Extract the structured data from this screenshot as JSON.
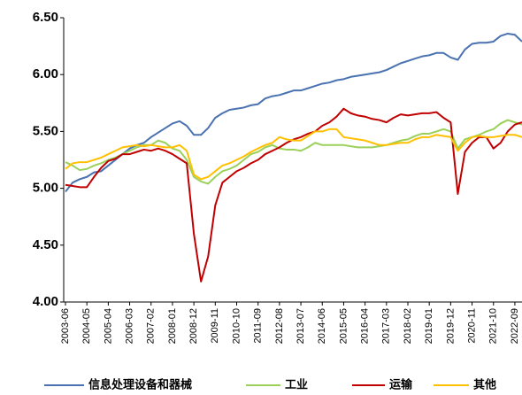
{
  "chart_data": {
    "type": "line",
    "categories": [
      "2003-06",
      null,
      null,
      "2004-05",
      null,
      null,
      "2005-04",
      null,
      null,
      "2006-03",
      null,
      null,
      "2007-02",
      null,
      null,
      "2008-01",
      null,
      null,
      "2008-12",
      null,
      null,
      "2009-11",
      null,
      null,
      "2010-10",
      null,
      null,
      "2011-09",
      null,
      null,
      "2012-08",
      null,
      null,
      "2013-07",
      null,
      null,
      "2014-06",
      null,
      null,
      "2015-05",
      null,
      null,
      "2016-04",
      null,
      null,
      "2017-03",
      null,
      null,
      "2018-02",
      null,
      null,
      "2019-01",
      null,
      null,
      "2019-12",
      null,
      null,
      "2020-11",
      null,
      null,
      "2021-10",
      null,
      null,
      "2022-09",
      null
    ],
    "ylim": [
      4.0,
      6.5
    ],
    "yticks": [
      {
        "value": 4.0,
        "label": "4.00"
      },
      {
        "value": 4.5,
        "label": "4.50"
      },
      {
        "value": 5.0,
        "label": "5.00"
      },
      {
        "value": 5.5,
        "label": "5.50"
      },
      {
        "value": 6.0,
        "label": "6.00"
      },
      {
        "value": 6.5,
        "label": "6.50"
      }
    ],
    "grid": false,
    "legend": "bottom",
    "series": [
      {
        "name": "信息处理设备和器械",
        "color": "#4a72b0",
        "values": [
          4.97,
          5.05,
          5.08,
          5.1,
          5.14,
          5.15,
          5.2,
          5.25,
          5.3,
          5.35,
          5.38,
          5.4,
          5.45,
          5.49,
          5.53,
          5.57,
          5.59,
          5.55,
          5.47,
          5.47,
          5.53,
          5.62,
          5.66,
          5.69,
          5.7,
          5.71,
          5.73,
          5.74,
          5.79,
          5.81,
          5.82,
          5.84,
          5.86,
          5.86,
          5.88,
          5.9,
          5.92,
          5.93,
          5.95,
          5.96,
          5.98,
          5.99,
          6.0,
          6.01,
          6.02,
          6.04,
          6.07,
          6.1,
          6.12,
          6.14,
          6.16,
          6.17,
          6.19,
          6.19,
          6.15,
          6.13,
          6.22,
          6.27,
          6.28,
          6.28,
          6.29,
          6.34,
          6.36,
          6.35,
          6.29
        ]
      },
      {
        "name": "工业",
        "color": "#9bd05a",
        "values": [
          5.23,
          5.2,
          5.16,
          5.17,
          5.2,
          5.22,
          5.25,
          5.27,
          5.3,
          5.33,
          5.36,
          5.38,
          5.38,
          5.42,
          5.4,
          5.35,
          5.33,
          5.25,
          5.1,
          5.06,
          5.04,
          5.1,
          5.15,
          5.17,
          5.2,
          5.25,
          5.3,
          5.32,
          5.36,
          5.38,
          5.35,
          5.34,
          5.34,
          5.33,
          5.36,
          5.4,
          5.38,
          5.38,
          5.38,
          5.38,
          5.37,
          5.36,
          5.36,
          5.36,
          5.37,
          5.38,
          5.4,
          5.42,
          5.43,
          5.46,
          5.48,
          5.48,
          5.5,
          5.52,
          5.5,
          5.35,
          5.43,
          5.45,
          5.47,
          5.5,
          5.52,
          5.57,
          5.6,
          5.58,
          5.56
        ]
      },
      {
        "name": "运输",
        "color": "#c00000",
        "values": [
          5.03,
          5.02,
          5.01,
          5.01,
          5.1,
          5.18,
          5.24,
          5.26,
          5.3,
          5.3,
          5.32,
          5.34,
          5.33,
          5.35,
          5.33,
          5.3,
          5.26,
          5.22,
          4.6,
          4.18,
          4.4,
          4.85,
          5.05,
          5.1,
          5.15,
          5.18,
          5.22,
          5.25,
          5.3,
          5.33,
          5.36,
          5.4,
          5.43,
          5.45,
          5.48,
          5.5,
          5.55,
          5.58,
          5.63,
          5.7,
          5.66,
          5.64,
          5.63,
          5.61,
          5.6,
          5.58,
          5.62,
          5.65,
          5.64,
          5.65,
          5.66,
          5.66,
          5.67,
          5.62,
          5.58,
          4.95,
          5.32,
          5.4,
          5.45,
          5.45,
          5.35,
          5.4,
          5.5,
          5.56,
          5.58
        ]
      },
      {
        "name": "其他",
        "color": "#ffc000",
        "values": [
          5.17,
          5.22,
          5.23,
          5.23,
          5.25,
          5.27,
          5.3,
          5.33,
          5.36,
          5.37,
          5.38,
          5.37,
          5.38,
          5.37,
          5.36,
          5.36,
          5.38,
          5.33,
          5.12,
          5.08,
          5.1,
          5.15,
          5.2,
          5.22,
          5.25,
          5.28,
          5.32,
          5.35,
          5.38,
          5.4,
          5.45,
          5.43,
          5.42,
          5.42,
          5.46,
          5.5,
          5.5,
          5.52,
          5.52,
          5.45,
          5.44,
          5.43,
          5.42,
          5.4,
          5.38,
          5.38,
          5.39,
          5.4,
          5.4,
          5.43,
          5.45,
          5.45,
          5.47,
          5.46,
          5.45,
          5.33,
          5.4,
          5.45,
          5.46,
          5.45,
          5.45,
          5.46,
          5.47,
          5.47,
          5.45
        ]
      }
    ]
  }
}
